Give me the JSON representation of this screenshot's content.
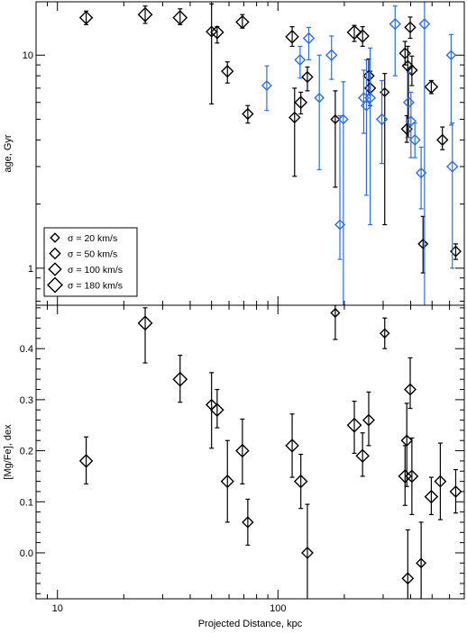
{
  "chart_data": [
    {
      "type": "scatter",
      "panel": "top",
      "ylabel": "age, Gyr",
      "xlabel": "",
      "xscale": "log",
      "yscale": "log",
      "xlim": [
        8,
        700
      ],
      "ylim": [
        0.67,
        17.8
      ],
      "xticks": [
        {
          "v": 10,
          "label": ""
        },
        {
          "v": 100,
          "label": ""
        }
      ],
      "yticks": [
        {
          "v": 1,
          "label": "1"
        },
        {
          "v": 10,
          "label": "10"
        }
      ],
      "legend": {
        "placement": "lower-left",
        "entries": [
          {
            "label": "σ = 20 km/s",
            "sigma": 20
          },
          {
            "label": "σ = 50 km/s",
            "sigma": 50
          },
          {
            "label": "σ = 100 km/s",
            "sigma": 100
          },
          {
            "label": "σ = 180 km/s",
            "sigma": 180
          }
        ]
      },
      "colors": {
        "black": "#000000",
        "blue": "#2a6ee8"
      },
      "series": [
        {
          "color": "black",
          "points": [
            {
              "x": 13.5,
              "y": 15.0,
              "lo": 13.9,
              "hi": 16.1,
              "sigma": 100
            },
            {
              "x": 25,
              "y": 15.5,
              "lo": 14.1,
              "hi": 17.0,
              "sigma": 140
            },
            {
              "x": 36,
              "y": 15.0,
              "lo": 13.9,
              "hi": 16.5,
              "sigma": 140
            },
            {
              "x": 50,
              "y": 12.9,
              "lo": 5.9,
              "hi": 17.4,
              "sigma": 45
            },
            {
              "x": 53,
              "y": 12.8,
              "lo": 11.4,
              "hi": 13.6,
              "sigma": 100
            },
            {
              "x": 59,
              "y": 8.4,
              "lo": 7.4,
              "hi": 9.3,
              "sigma": 70
            },
            {
              "x": 69,
              "y": 14.3,
              "lo": 13.4,
              "hi": 15.5,
              "sigma": 100
            },
            {
              "x": 73,
              "y": 5.3,
              "lo": 4.8,
              "hi": 5.8,
              "sigma": 50
            },
            {
              "x": 116,
              "y": 12.2,
              "lo": 11.0,
              "hi": 13.6,
              "sigma": 100
            },
            {
              "x": 119,
              "y": 5.1,
              "lo": 2.7,
              "hi": 7.0,
              "sigma": 50
            },
            {
              "x": 127,
              "y": 6.0,
              "lo": 5.3,
              "hi": 6.7,
              "sigma": 80
            },
            {
              "x": 136,
              "y": 7.9,
              "lo": 6.8,
              "hi": 8.8,
              "sigma": 50
            },
            {
              "x": 182,
              "y": 5.0,
              "lo": 2.4,
              "hi": 6.8,
              "sigma": 15
            },
            {
              "x": 222,
              "y": 12.8,
              "lo": 11.6,
              "hi": 13.8,
              "sigma": 140
            },
            {
              "x": 242,
              "y": 12.3,
              "lo": 11.0,
              "hi": 13.6,
              "sigma": 100
            },
            {
              "x": 258,
              "y": 8.0,
              "lo": 6.5,
              "hi": 9.6,
              "sigma": 50
            },
            {
              "x": 262,
              "y": 7.0,
              "lo": 5.8,
              "hi": 8.4,
              "sigma": 50
            },
            {
              "x": 305,
              "y": 6.7,
              "lo": 1.6,
              "hi": 8.2,
              "sigma": 15
            },
            {
              "x": 377,
              "y": 10.2,
              "lo": 9.0,
              "hi": 11.6,
              "sigma": 50
            },
            {
              "x": 384,
              "y": 4.5,
              "lo": 3.9,
              "hi": 5.2,
              "sigma": 50
            },
            {
              "x": 388,
              "y": 8.9,
              "lo": 4.1,
              "hi": 11.0,
              "sigma": 50
            },
            {
              "x": 398,
              "y": 13.5,
              "lo": 12.0,
              "hi": 15.1,
              "sigma": 50
            },
            {
              "x": 405,
              "y": 8.5,
              "lo": 7.2,
              "hi": 9.9,
              "sigma": 50
            },
            {
              "x": 455,
              "y": 1.3,
              "lo": 0.95,
              "hi": 1.75,
              "sigma": 25
            },
            {
              "x": 496,
              "y": 7.1,
              "lo": 6.6,
              "hi": 7.6,
              "sigma": 100
            },
            {
              "x": 557,
              "y": 4.0,
              "lo": 3.6,
              "hi": 4.6,
              "sigma": 50
            },
            {
              "x": 640,
              "y": 1.2,
              "lo": 1.1,
              "hi": 1.3,
              "sigma": 40
            }
          ]
        },
        {
          "color": "blue",
          "points": [
            {
              "x": 89,
              "y": 7.2,
              "lo": 5.5,
              "hi": 8.9,
              "sigma": 25
            },
            {
              "x": 126,
              "y": 9.5,
              "lo": 7.8,
              "hi": 11.0,
              "sigma": 40
            },
            {
              "x": 138,
              "y": 12.0,
              "lo": 9.5,
              "hi": 13.5,
              "sigma": 50
            },
            {
              "x": 154,
              "y": 6.3,
              "lo": 2.9,
              "hi": 10.0,
              "sigma": 20
            },
            {
              "x": 175,
              "y": 10.0,
              "lo": 7.7,
              "hi": 12.3,
              "sigma": 50
            },
            {
              "x": 191,
              "y": 1.6,
              "lo": 1.1,
              "hi": 5.2,
              "sigma": 25
            },
            {
              "x": 198,
              "y": 5.0,
              "lo": 0.6,
              "hi": 7.5,
              "sigma": 20
            },
            {
              "x": 245,
              "y": 6.3,
              "lo": 4.3,
              "hi": 8.5,
              "sigma": 40
            },
            {
              "x": 252,
              "y": 5.8,
              "lo": 2.2,
              "hi": 9.5,
              "sigma": 40
            },
            {
              "x": 262,
              "y": 6.3,
              "lo": 1.6,
              "hi": 10.8,
              "sigma": 40
            },
            {
              "x": 296,
              "y": 5.0,
              "lo": 3.1,
              "hi": 7.6,
              "sigma": 50
            },
            {
              "x": 340,
              "y": 14.0,
              "lo": 8.0,
              "hi": 17.0,
              "sigma": 50
            },
            {
              "x": 392,
              "y": 6.0,
              "lo": 4.1,
              "hi": 8.3,
              "sigma": 40
            },
            {
              "x": 401,
              "y": 4.9,
              "lo": 3.3,
              "hi": 6.7,
              "sigma": 30
            },
            {
              "x": 418,
              "y": 4.0,
              "lo": 3.3,
              "hi": 4.8,
              "sigma": 40
            },
            {
              "x": 446,
              "y": 2.8,
              "lo": 1.9,
              "hi": 3.7,
              "sigma": 30
            },
            {
              "x": 462,
              "y": 14.0,
              "lo": 0.6,
              "hi": 17.8,
              "sigma": 40
            },
            {
              "x": 610,
              "y": 10.0,
              "lo": 4.7,
              "hi": 12.5,
              "sigma": 20
            },
            {
              "x": 618,
              "y": 3.0,
              "lo": 1.0,
              "hi": 4.8,
              "sigma": 50
            }
          ]
        }
      ]
    },
    {
      "type": "scatter",
      "panel": "bottom",
      "ylabel": "[Mg/Fe], dex",
      "xlabel": "Projected Distance, kpc",
      "xscale": "log",
      "yscale": "linear",
      "xlim": [
        8,
        700
      ],
      "ylim": [
        -0.09,
        0.485
      ],
      "xticks": [
        {
          "v": 10,
          "label": "10"
        },
        {
          "v": 100,
          "label": "100"
        }
      ],
      "yticks": [
        {
          "v": 0.0,
          "label": "0.0"
        },
        {
          "v": 0.1,
          "label": "0.1"
        },
        {
          "v": 0.2,
          "label": "0.2"
        },
        {
          "v": 0.3,
          "label": "0.3"
        },
        {
          "v": 0.4,
          "label": "0.4"
        }
      ],
      "series": [
        {
          "color": "black",
          "points": [
            {
              "x": 13.5,
              "y": 0.18,
              "lo": 0.135,
              "hi": 0.227,
              "sigma": 100
            },
            {
              "x": 25,
              "y": 0.45,
              "lo": 0.372,
              "hi": 0.48,
              "sigma": 140
            },
            {
              "x": 36,
              "y": 0.34,
              "lo": 0.295,
              "hi": 0.387,
              "sigma": 140
            },
            {
              "x": 50,
              "y": 0.29,
              "lo": 0.205,
              "hi": 0.353,
              "sigma": 50
            },
            {
              "x": 53,
              "y": 0.28,
              "lo": 0.245,
              "hi": 0.32,
              "sigma": 100
            },
            {
              "x": 59,
              "y": 0.14,
              "lo": 0.06,
              "hi": 0.22,
              "sigma": 90
            },
            {
              "x": 69,
              "y": 0.2,
              "lo": 0.135,
              "hi": 0.262,
              "sigma": 100
            },
            {
              "x": 73,
              "y": 0.06,
              "lo": 0.015,
              "hi": 0.105,
              "sigma": 50
            },
            {
              "x": 116,
              "y": 0.21,
              "lo": 0.148,
              "hi": 0.272,
              "sigma": 100
            },
            {
              "x": 127,
              "y": 0.14,
              "lo": 0.087,
              "hi": 0.193,
              "sigma": 100
            },
            {
              "x": 136,
              "y": 0.0,
              "lo": -0.095,
              "hi": 0.095,
              "sigma": 60
            },
            {
              "x": 182,
              "y": 0.47,
              "lo": 0.418,
              "hi": 0.485,
              "sigma": 15
            },
            {
              "x": 222,
              "y": 0.25,
              "lo": 0.195,
              "hi": 0.297,
              "sigma": 140
            },
            {
              "x": 242,
              "y": 0.19,
              "lo": 0.15,
              "hi": 0.235,
              "sigma": 100
            },
            {
              "x": 258,
              "y": 0.26,
              "lo": 0.21,
              "hi": 0.315,
              "sigma": 60
            },
            {
              "x": 305,
              "y": 0.43,
              "lo": 0.4,
              "hi": 0.46,
              "sigma": 20
            },
            {
              "x": 377,
              "y": 0.15,
              "lo": 0.093,
              "hi": 0.21,
              "sigma": 100
            },
            {
              "x": 384,
              "y": 0.22,
              "lo": 0.13,
              "hi": 0.293,
              "sigma": 50
            },
            {
              "x": 388,
              "y": -0.05,
              "lo": -0.095,
              "hi": 0.045,
              "sigma": 60
            },
            {
              "x": 398,
              "y": 0.32,
              "lo": 0.283,
              "hi": 0.382,
              "sigma": 60
            },
            {
              "x": 405,
              "y": 0.15,
              "lo": 0.075,
              "hi": 0.225,
              "sigma": 80
            },
            {
              "x": 446,
              "y": -0.02,
              "lo": -0.095,
              "hi": 0.06,
              "sigma": 25
            },
            {
              "x": 496,
              "y": 0.11,
              "lo": 0.075,
              "hi": 0.148,
              "sigma": 100
            },
            {
              "x": 545,
              "y": 0.14,
              "lo": 0.065,
              "hi": 0.215,
              "sigma": 60
            },
            {
              "x": 640,
              "y": 0.12,
              "lo": 0.078,
              "hi": 0.163,
              "sigma": 60
            }
          ]
        }
      ]
    }
  ]
}
